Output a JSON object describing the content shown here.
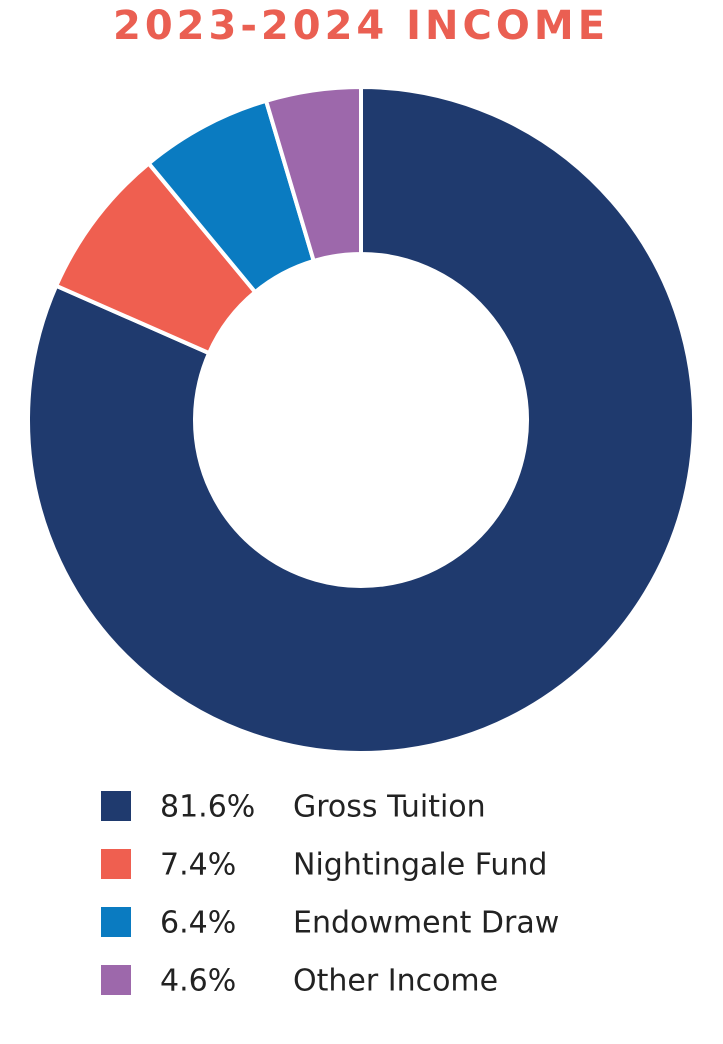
{
  "chart_data": {
    "type": "pie",
    "donut": true,
    "title": "2023-2024 INCOME",
    "categories": [
      "Gross Tuition",
      "Nightingale Fund",
      "Endowment Draw",
      "Other Income"
    ],
    "values": [
      81.6,
      7.4,
      6.4,
      4.6
    ],
    "value_labels": [
      "81.6%",
      "7.4%",
      "6.4%",
      "4.6%"
    ],
    "colors": [
      "#1f3a6e",
      "#ef5f50",
      "#0a7bc1",
      "#9d68ab"
    ]
  }
}
